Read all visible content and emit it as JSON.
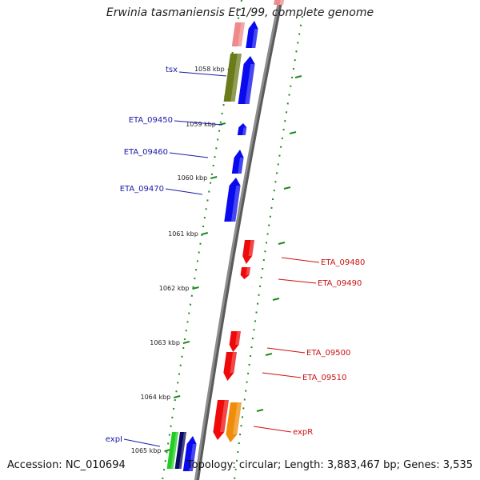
{
  "title": "Erwinia tasmaniensis Et1/99, complete genome",
  "footer": {
    "accession": "Accession: NC_010694",
    "summary": "Topology: circular; Length: 3,883,467 bp; Genes: 3,535"
  },
  "colors": {
    "backbone": "#8c8c8c",
    "tick": "#1f8a1f",
    "forward_label": "#1a1aa6",
    "reverse_label": "#cc1111",
    "blue": "#0a0aee",
    "red": "#ee0a0a",
    "pink": "#f08a8a",
    "olive": "#6b7a1a",
    "orange": "#f08c0a",
    "green": "#22cc22",
    "navy": "#0a0a66"
  },
  "ticks": [
    {
      "label": "1058 kbp",
      "kbp": 1058
    },
    {
      "label": "1059 kbp",
      "kbp": 1059
    },
    {
      "label": "1060 kbp",
      "kbp": 1060
    },
    {
      "label": "1061 kbp",
      "kbp": 1061
    },
    {
      "label": "1062 kbp",
      "kbp": 1062
    },
    {
      "label": "1063 kbp",
      "kbp": 1063
    },
    {
      "label": "1064 kbp",
      "kbp": 1064
    },
    {
      "label": "1065 kbp",
      "kbp": 1065
    }
  ],
  "genes_forward_labels": [
    "tsx",
    "ETA_09450",
    "ETA_09460",
    "ETA_09470",
    "expI"
  ],
  "genes_reverse_labels": [
    "ETA_09480",
    "ETA_09490",
    "ETA_09500",
    "ETA_09510",
    "expR"
  ]
}
